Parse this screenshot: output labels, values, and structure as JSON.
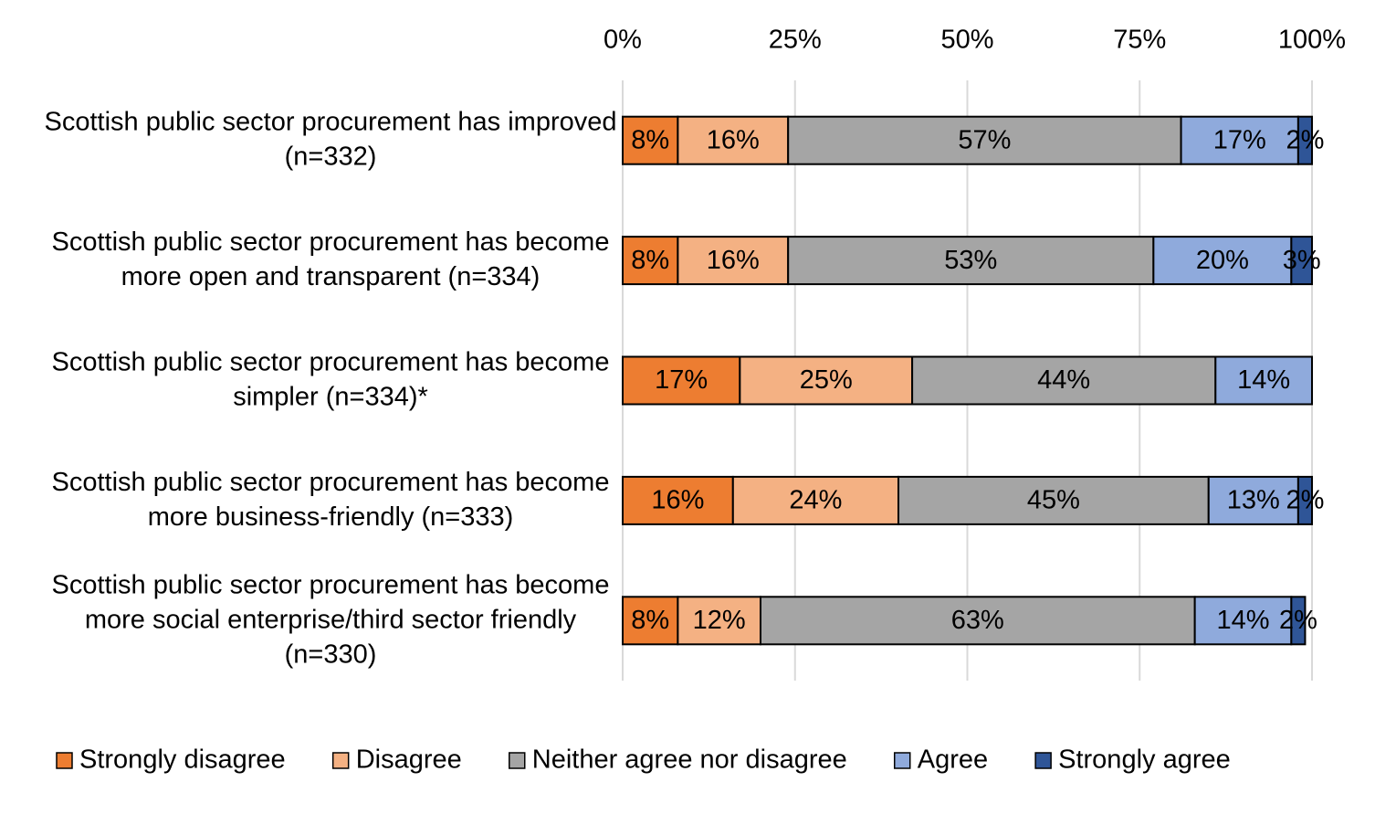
{
  "chart_data": {
    "type": "stacked_barh",
    "categories": [
      "Scottish public sector procurement has improved (n=332)",
      "Scottish public sector procurement has become more open and transparent (n=334)",
      "Scottish public sector procurement has become simpler (n=334)*",
      "Scottish public sector procurement has become more business-friendly (n=333)",
      "Scottish public sector procurement has become more social enterprise/third sector friendly (n=330)"
    ],
    "series": [
      {
        "name": "Strongly disagree",
        "color": "#ed7d31",
        "label_color": "#000000",
        "values": [
          8,
          8,
          17,
          16,
          8
        ],
        "value_labels": [
          "8%",
          "8%",
          "17%",
          "16%",
          "8%"
        ]
      },
      {
        "name": "Disagree",
        "color": "#f4b183",
        "label_color": "#000000",
        "values": [
          16,
          16,
          25,
          24,
          12
        ],
        "value_labels": [
          "16%",
          "16%",
          "25%",
          "24%",
          "12%"
        ]
      },
      {
        "name": "Neither agree nor disagree",
        "color": "#a5a5a5",
        "label_color": "#000000",
        "values": [
          57,
          53,
          44,
          45,
          63
        ],
        "value_labels": [
          "57%",
          "53%",
          "44%",
          "45%",
          "63%"
        ]
      },
      {
        "name": "Agree",
        "color": "#8faadc",
        "label_color": "#000000",
        "values": [
          17,
          20,
          14,
          13,
          14
        ],
        "value_labels": [
          "17%",
          "20%",
          "14%",
          "13%",
          "14%"
        ]
      },
      {
        "name": "Strongly agree",
        "color": "#2f5597",
        "label_color": "#ffffff",
        "values": [
          2,
          3,
          null,
          2,
          2
        ],
        "value_labels": [
          "2%",
          "3%",
          null,
          "2%",
          "2%"
        ]
      }
    ],
    "xlim": [
      0,
      100
    ],
    "xticks": [
      {
        "value": 0,
        "label": "0%"
      },
      {
        "value": 25,
        "label": "25%"
      },
      {
        "value": 50,
        "label": "50%"
      },
      {
        "value": 75,
        "label": "75%"
      },
      {
        "value": 100,
        "label": "100%"
      }
    ],
    "grid": true,
    "legend": "bottom"
  }
}
